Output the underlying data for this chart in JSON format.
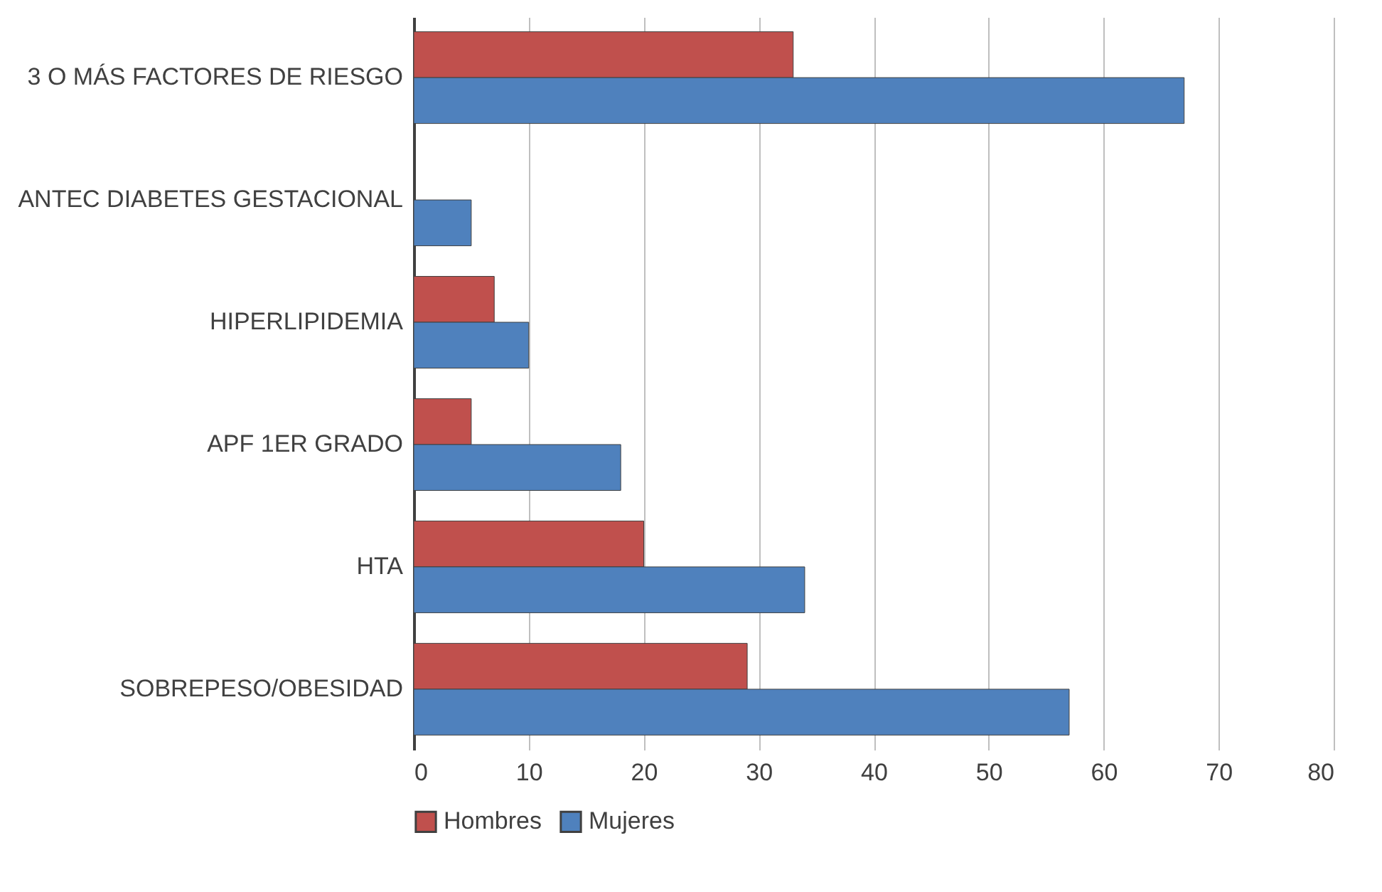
{
  "chart_data": {
    "type": "bar",
    "orientation": "horizontal",
    "categories": [
      "3 O MÁS FACTORES DE RIESGO",
      "ANTEC DIABETES GESTACIONAL",
      "HIPERLIPIDEMIA",
      "APF 1ER GRADO",
      "HTA",
      "SOBREPESO/OBESIDAD"
    ],
    "series": [
      {
        "name": "Hombres",
        "color": "#c0504d",
        "values": [
          33,
          null,
          7,
          5,
          20,
          29
        ]
      },
      {
        "name": "Mujeres",
        "color": "#4f81bd",
        "values": [
          67,
          5,
          10,
          18,
          34,
          57
        ]
      }
    ],
    "xlim": [
      0,
      80
    ],
    "xticks": [
      0,
      10,
      20,
      30,
      40,
      50,
      60,
      70,
      80
    ],
    "grid": "x",
    "legend": "bottom"
  }
}
